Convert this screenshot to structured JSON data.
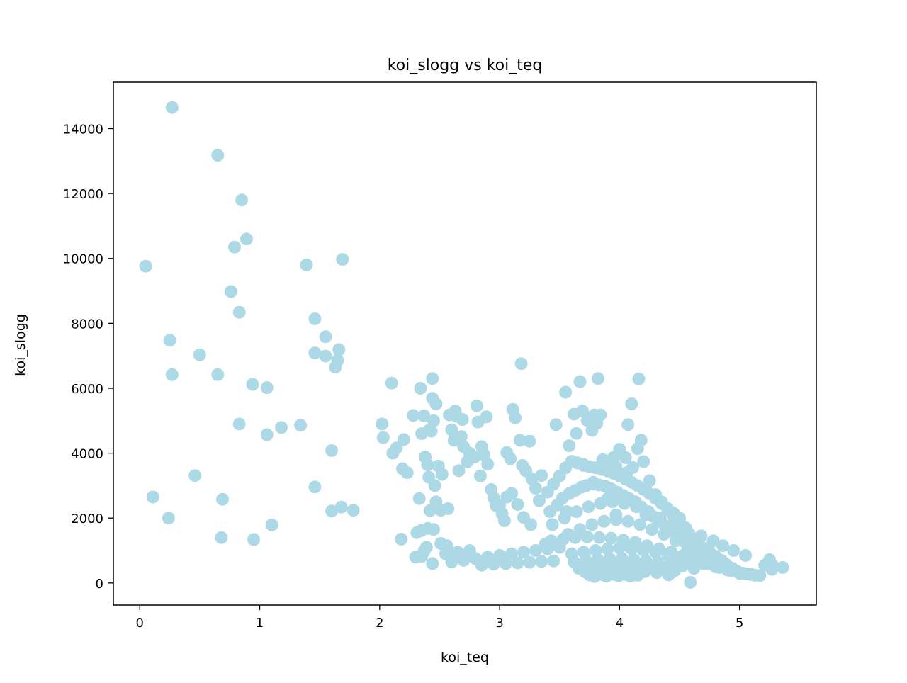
{
  "chart_data": {
    "type": "scatter",
    "title": "koi_slogg vs koi_teq",
    "xlabel": "koi_teq",
    "ylabel": "koi_slogg",
    "xlim": [
      -0.22,
      5.64
    ],
    "ylim": [
      -680,
      15430
    ],
    "x_ticks": [
      0,
      1,
      2,
      3,
      4,
      5
    ],
    "x_tick_labels": [
      "0",
      "1",
      "2",
      "3",
      "4",
      "5"
    ],
    "y_ticks": [
      0,
      2000,
      4000,
      6000,
      8000,
      10000,
      12000,
      14000
    ],
    "y_tick_labels": [
      "0",
      "2000",
      "4000",
      "6000",
      "8000",
      "10000",
      "12000",
      "14000"
    ],
    "grid": false,
    "legend": "none",
    "point_color": "#add8e6",
    "series": [
      {
        "x": [
          0.27,
          0.65,
          0.85,
          0.89,
          0.79,
          0.05,
          1.39,
          1.69,
          0.76,
          0.83,
          1.46,
          1.55,
          0.25,
          0.5,
          1.46,
          1.55,
          1.66,
          1.65,
          1.63,
          0.27,
          0.65,
          0.94,
          1.06,
          0.83,
          1.06,
          1.18,
          1.34,
          1.6,
          0.46,
          0.11,
          0.69,
          1.46,
          1.68,
          1.6,
          1.78,
          0.24,
          1.1,
          0.68,
          0.95,
          2.02,
          2.03,
          2.11,
          2.2,
          2.14,
          2.19,
          2.23,
          2.18,
          2.1,
          2.28,
          2.34,
          2.37,
          2.41,
          2.44,
          2.35,
          2.45,
          2.43,
          2.47,
          2.44,
          2.38,
          2.4,
          2.41,
          2.46,
          2.49,
          2.52,
          2.33,
          2.42,
          2.47,
          2.51,
          2.57,
          2.35,
          2.4,
          2.45,
          2.3,
          2.31,
          2.35,
          2.37,
          2.39,
          2.44,
          2.51,
          2.56,
          2.58,
          2.63,
          2.64,
          2.62,
          2.68,
          2.69,
          2.7,
          2.75,
          2.79,
          2.81,
          2.82,
          2.85,
          2.87,
          2.89,
          2.6,
          2.66,
          2.73,
          2.84,
          2.9,
          2.93,
          2.95,
          2.97,
          3.0,
          3.02,
          3.06,
          3.09,
          3.11,
          3.13,
          3.17,
          3.19,
          3.22,
          3.25,
          3.27,
          3.3,
          3.33,
          3.06,
          3.1,
          3.15,
          3.2,
          3.26,
          3.18,
          3.04,
          3.35,
          3.47,
          3.55,
          3.62,
          3.67,
          3.69,
          3.73,
          3.77,
          3.79,
          3.81,
          3.84,
          3.86,
          3.64,
          3.7,
          3.58,
          3.82,
          4.16,
          4.1,
          4.07,
          4.15,
          4.18,
          3.95,
          4.0,
          4.05,
          3.88,
          3.92,
          3.97,
          4.02,
          4.06,
          4.11,
          4.2,
          4.25,
          4.3,
          4.35,
          4.4,
          4.45,
          4.5,
          4.55,
          4.58,
          4.62,
          4.66,
          4.7,
          4.75,
          4.8,
          4.85,
          4.88,
          4.91,
          4.94,
          4.97,
          5.0,
          5.03,
          5.06,
          5.1,
          5.13,
          5.17,
          5.21,
          5.25,
          5.28,
          5.36,
          5.27,
          3.4,
          3.45,
          3.5,
          3.55,
          3.6,
          3.65,
          3.7,
          3.75,
          3.8,
          3.85,
          3.9,
          3.95,
          4.0,
          4.05,
          4.1,
          4.15,
          4.2,
          4.25,
          4.3,
          4.35,
          4.4,
          4.45,
          4.5,
          3.42,
          3.48,
          3.52,
          3.58,
          3.63,
          3.68,
          3.72,
          3.78,
          3.83,
          3.88,
          3.93,
          3.98,
          4.03,
          4.08,
          4.13,
          4.18,
          4.23,
          4.28,
          4.33,
          4.38,
          4.43,
          4.48,
          4.53,
          4.58,
          4.63,
          3.44,
          3.54,
          3.64,
          3.74,
          3.84,
          3.94,
          4.04,
          4.14,
          4.24,
          4.34,
          4.44,
          4.54,
          4.64,
          4.74,
          3.57,
          3.67,
          3.77,
          3.87,
          3.97,
          4.07,
          4.17,
          4.27,
          4.37,
          4.47,
          4.57,
          4.67,
          4.77,
          4.87,
          3.38,
          3.43,
          3.53,
          3.63,
          3.73,
          3.83,
          3.93,
          4.03,
          4.13,
          4.23,
          4.33,
          4.43,
          4.53,
          4.63,
          4.73,
          4.83,
          4.93,
          3.6,
          3.7,
          3.8,
          3.9,
          4.0,
          4.1,
          4.2,
          4.3,
          4.4,
          4.5,
          4.6,
          4.7,
          4.8,
          4.9,
          5.0,
          3.62,
          3.72,
          3.82,
          3.92,
          4.02,
          4.12,
          4.22,
          4.32,
          4.42,
          4.52,
          4.62,
          3.66,
          3.76,
          3.86,
          3.96,
          4.06,
          4.16,
          4.26,
          4.36,
          4.46,
          3.71,
          3.81,
          3.91,
          4.01,
          4.11,
          4.21,
          4.31,
          3.75,
          3.85,
          3.95,
          4.05,
          4.15,
          3.79,
          3.89,
          3.99,
          4.09,
          2.8,
          2.9,
          3.0,
          3.1,
          3.2,
          3.3,
          3.4,
          3.5,
          2.85,
          2.95,
          3.05,
          3.15,
          3.25,
          3.35,
          3.45,
          2.55,
          2.65,
          2.75,
          2.6,
          2.7,
          3.56,
          3.9,
          4.22,
          4.34,
          4.45,
          4.56,
          4.68,
          4.78,
          4.86,
          4.95,
          5.05,
          4.59,
          4.41,
          3.97,
          4.13,
          3.78
        ],
        "y": [
          14650,
          13180,
          11800,
          10600,
          10350,
          9760,
          9800,
          9970,
          8980,
          8340,
          8140,
          7590,
          7480,
          7030,
          7090,
          6990,
          7190,
          6860,
          6650,
          6420,
          6420,
          6120,
          6020,
          4900,
          4570,
          4790,
          4860,
          4080,
          3310,
          2650,
          2580,
          2960,
          2340,
          2220,
          2240,
          2000,
          1790,
          1400,
          1340,
          4900,
          4480,
          4000,
          4420,
          4160,
          3520,
          3400,
          1350,
          6160,
          5160,
          6000,
          5150,
          4700,
          6300,
          4600,
          5000,
          4680,
          5520,
          5690,
          3880,
          3640,
          3260,
          3000,
          3600,
          3350,
          2600,
          2230,
          2500,
          2240,
          2290,
          1620,
          1680,
          1650,
          800,
          1550,
          820,
          980,
          1100,
          600,
          1220,
          1150,
          5180,
          5300,
          5140,
          4400,
          4510,
          5040,
          4200,
          4000,
          3880,
          5460,
          4960,
          4200,
          3950,
          5120,
          4720,
          3460,
          3740,
          3300,
          3660,
          2880,
          2630,
          2390,
          2400,
          2140,
          4020,
          3830,
          5350,
          5090,
          4400,
          3620,
          3450,
          4370,
          3200,
          2920,
          2540,
          2650,
          2760,
          2420,
          2020,
          1800,
          6760,
          1920,
          3310,
          4880,
          5880,
          5200,
          6200,
          5300,
          5010,
          4700,
          5180,
          4920,
          5180,
          3800,
          4610,
          3650,
          4230,
          6300,
          6290,
          5520,
          4880,
          4140,
          4400,
          3870,
          4120,
          3860,
          3720,
          3620,
          3580,
          3280,
          3400,
          3560,
          3740,
          3150,
          2720,
          2500,
          2260,
          2050,
          1850,
          1700,
          1520,
          1320,
          1180,
          1080,
          950,
          820,
          700,
          600,
          500,
          450,
          380,
          320,
          300,
          280,
          260,
          240,
          230,
          550,
          720,
          520,
          480,
          420,
          2800,
          3050,
          3300,
          3550,
          3750,
          3700,
          3620,
          3580,
          3550,
          3500,
          3450,
          3380,
          3300,
          3200,
          3100,
          3000,
          2880,
          2750,
          2600,
          2450,
          2300,
          2150,
          2000,
          2200,
          2400,
          2600,
          2750,
          2850,
          2950,
          3000,
          3050,
          3020,
          2980,
          2900,
          2800,
          2700,
          2600,
          2500,
          2350,
          2200,
          2050,
          1900,
          1750,
          1600,
          1450,
          1300,
          1150,
          1000,
          1800,
          2000,
          2200,
          2350,
          2450,
          2500,
          2450,
          2350,
          2200,
          2000,
          1800,
          1550,
          1300,
          1050,
          1500,
          1650,
          1800,
          1900,
          1950,
          1900,
          1800,
          1650,
          1500,
          1300,
          1100,
          900,
          700,
          500,
          1200,
          1300,
          1350,
          1400,
          1420,
          1400,
          1380,
          1320,
          1250,
          1150,
          1050,
          950,
          850,
          720,
          600,
          480,
          380,
          900,
          950,
          1000,
          1050,
          1080,
          1050,
          1000,
          950,
          880,
          800,
          700,
          600,
          500,
          400,
          300,
          650,
          700,
          720,
          740,
          750,
          720,
          680,
          640,
          580,
          520,
          450,
          450,
          480,
          500,
          520,
          520,
          500,
          470,
          430,
          380,
          350,
          360,
          380,
          390,
          380,
          350,
          320,
          250,
          260,
          270,
          260,
          240,
          200,
          210,
          220,
          210,
          750,
          800,
          850,
          900,
          950,
          1000,
          1050,
          1100,
          550,
          580,
          600,
          620,
          640,
          660,
          680,
          900,
          950,
          1000,
          650,
          700,
          2200,
          2600,
          2100,
          1900,
          1750,
          1600,
          1450,
          1300,
          1150,
          1000,
          850,
          20,
          250,
          2100,
          2500,
          3100
        ]
      }
    ]
  }
}
